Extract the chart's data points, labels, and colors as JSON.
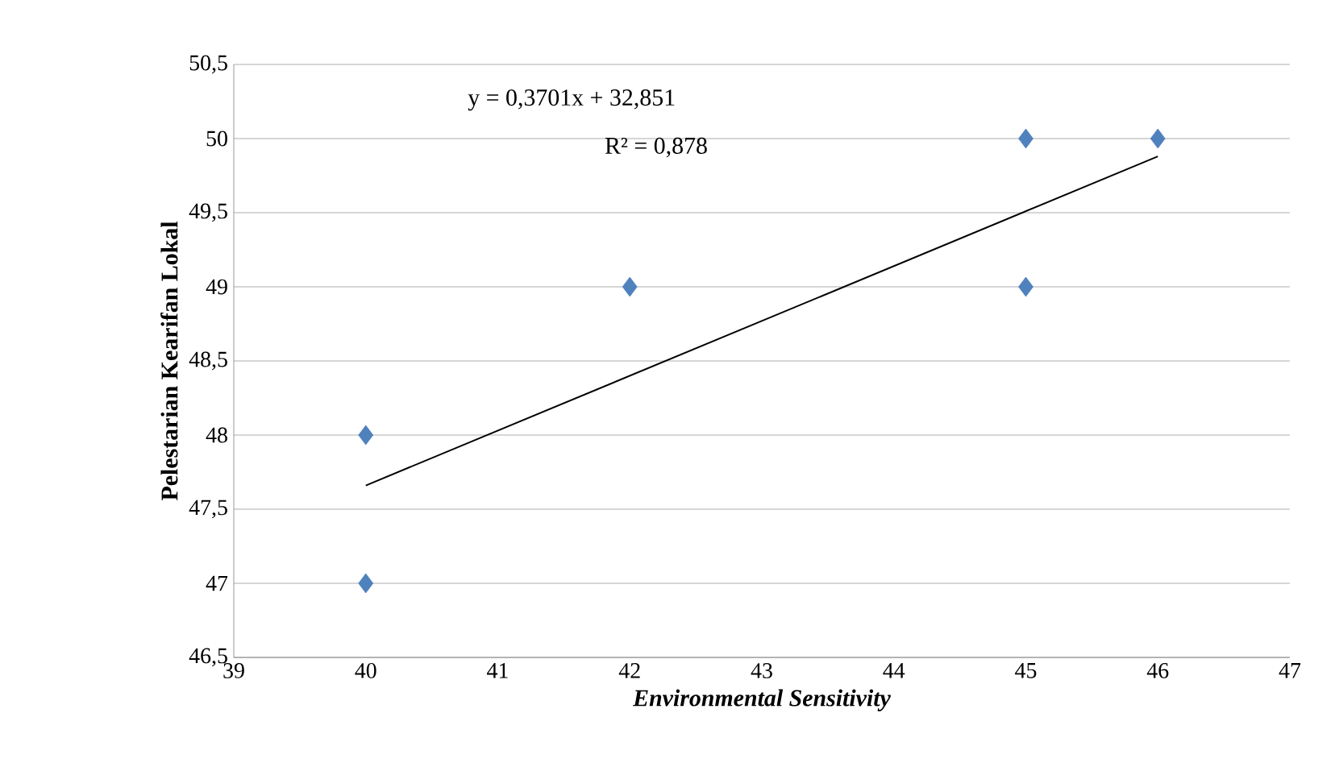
{
  "chart_data": {
    "type": "scatter",
    "xlabel": "Environmental Sensitivity",
    "ylabel": "Pelestarian Kearifan Lokal",
    "xlim": [
      39,
      47
    ],
    "xticks": [
      39,
      40,
      41,
      42,
      43,
      44,
      45,
      46,
      47
    ],
    "ylim": [
      46.5,
      50.5
    ],
    "yticks": [
      {
        "value": 46.5,
        "label": "46,5"
      },
      47,
      {
        "value": 47.5,
        "label": "47,5"
      },
      48,
      {
        "value": 48.5,
        "label": "48,5"
      },
      49,
      {
        "value": 49.5,
        "label": "49,5"
      },
      50,
      {
        "value": 50.5,
        "label": "50,5"
      }
    ],
    "grid": "y",
    "marker": "diamond",
    "annotations": [
      "y = 0,3701x + 32,851",
      "R² = 0,878"
    ],
    "series": [
      {
        "color": "#4f81bd",
        "x": [
          40,
          40,
          42,
          45,
          45,
          46
        ],
        "values": [
          47,
          48,
          49,
          50,
          49,
          50
        ]
      },
      {
        "type": "line",
        "color": "#000000",
        "marker": "none",
        "line_style": "solid",
        "x": [
          40,
          46
        ],
        "values": [
          47.66,
          49.88
        ]
      }
    ]
  }
}
